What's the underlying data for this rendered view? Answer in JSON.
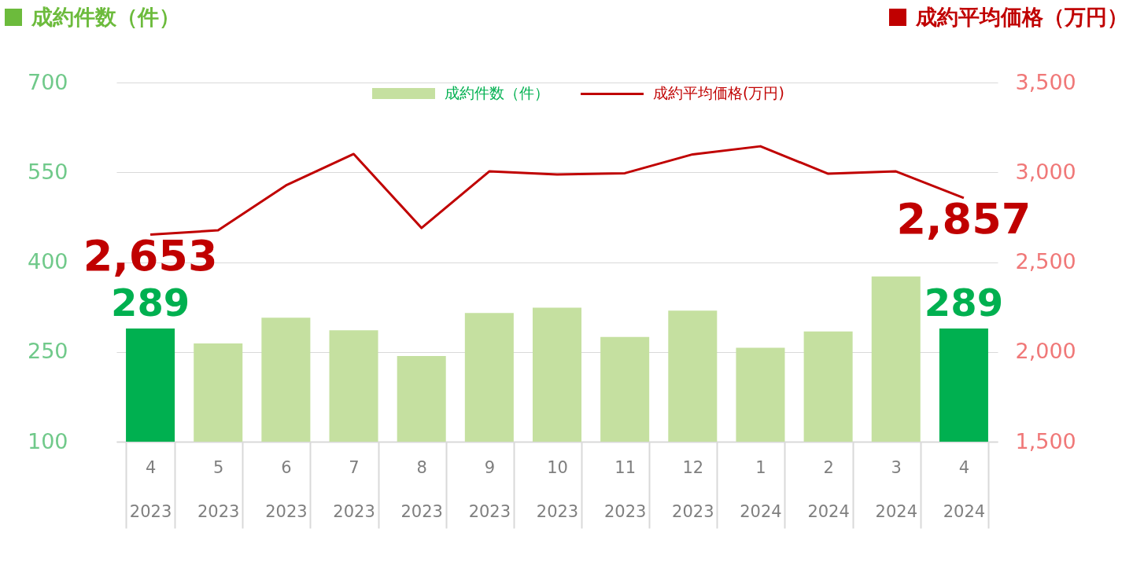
{
  "chart_data": {
    "type": "bar",
    "ylabel": "成約件数（件）",
    "y2label": "成約平均価格（万円）",
    "categories": [
      "4\n2023",
      "5\n2023",
      "6\n2023",
      "7\n2023",
      "8\n2023",
      "9\n2023",
      "10\n2023",
      "11\n2023",
      "12\n2023",
      "1\n2024",
      "2\n2024",
      "3\n2024",
      "4\n2024"
    ],
    "series": [
      {
        "name": "成約件数（件）",
        "color": "#c5e0a0",
        "colors": [
          "#00b050",
          "#c5e0a0",
          "#c5e0a0",
          "#c5e0a0",
          "#c5e0a0",
          "#c5e0a0",
          "#c5e0a0",
          "#c5e0a0",
          "#c5e0a0",
          "#c5e0a0",
          "#c5e0a0",
          "#c5e0a0",
          "#00b050"
        ],
        "values": [
          289,
          264,
          307,
          286,
          243,
          315,
          324,
          275,
          319,
          257,
          284,
          376,
          289
        ],
        "value_labels": [
          "289",
          null,
          null,
          null,
          null,
          null,
          null,
          null,
          null,
          null,
          null,
          null,
          "289"
        ]
      },
      {
        "type": "line",
        "axis": "y2",
        "name": "成約平均価格(万円)",
        "color": "#c00000",
        "values": [
          2653,
          2677,
          2927,
          3102,
          2690,
          3005,
          2988,
          2995,
          3100,
          3145,
          2992,
          3005,
          2857
        ],
        "value_labels": [
          "2,653",
          null,
          null,
          null,
          null,
          null,
          null,
          null,
          null,
          null,
          null,
          null,
          "2,857"
        ]
      }
    ],
    "ylim": [
      100,
      700
    ],
    "yticks": [
      100,
      250,
      400,
      550,
      700
    ],
    "y2lim": [
      1500,
      3500
    ],
    "y2ticks": [
      {
        "value": 1500,
        "label": "1,500"
      },
      {
        "value": 2000,
        "label": "2,000"
      },
      {
        "value": 2500,
        "label": "2,500"
      },
      {
        "value": 3000,
        "label": "3,000"
      },
      {
        "value": 3500,
        "label": "3,500"
      }
    ],
    "grid": "y",
    "legend": "top"
  }
}
